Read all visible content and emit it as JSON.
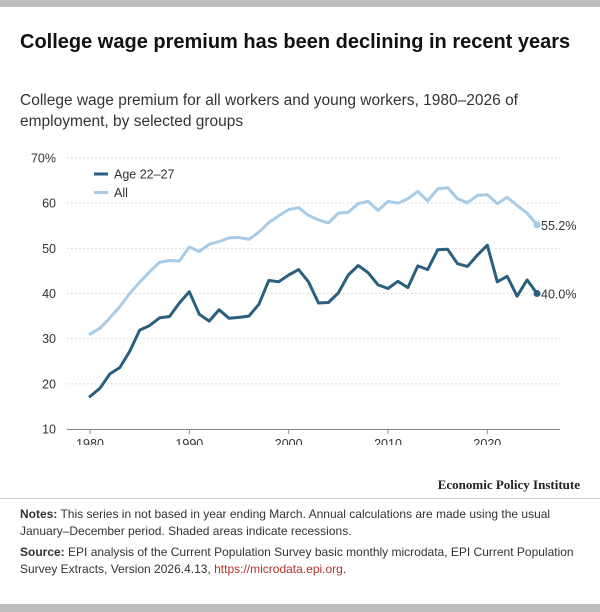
{
  "header": {
    "title": "College wage premium has been declining in recent years",
    "subtitle": "College wage premium for all workers and young workers, 1980–2026 of employment, by selected groups"
  },
  "footer": {
    "brand": "Economic Policy Institute",
    "notes_label": "Notes:",
    "notes_text": " This series in not based in year ending March. Annual calculations are made using the usual January–December period. Shaded areas indicate recessions.",
    "source_label": "Source:",
    "source_text": " EPI analysis of the Current Population Survey basic monthly microdata, EPI Current Population Survey Extracts, Version 2026.4.13, ",
    "source_link": "https://microdata.epi.org",
    "source_end": "."
  },
  "colors": {
    "young": "#2b5f80",
    "all": "#a8cbe8",
    "grid": "#d3d3d3",
    "text": "#333333"
  },
  "chart_data": {
    "type": "line",
    "title": "",
    "xlabel": "",
    "ylabel": "",
    "xlim": [
      1980,
      2025
    ],
    "ylim": [
      10,
      70
    ],
    "x_ticks": [
      1980,
      1990,
      2000,
      2010,
      2020
    ],
    "y_ticks": [
      10,
      20,
      30,
      40,
      50,
      60,
      70
    ],
    "y_tick_labels": [
      "10",
      "20",
      "30",
      "40",
      "50",
      "60",
      "70%"
    ],
    "grid": true,
    "legend": "top-left",
    "x": [
      1980,
      1981,
      1982,
      1983,
      1984,
      1985,
      1986,
      1987,
      1988,
      1989,
      1990,
      1991,
      1992,
      1993,
      1994,
      1995,
      1996,
      1997,
      1998,
      1999,
      2000,
      2001,
      2002,
      2003,
      2004,
      2005,
      2006,
      2007,
      2008,
      2009,
      2010,
      2011,
      2012,
      2013,
      2014,
      2015,
      2016,
      2017,
      2018,
      2019,
      2020,
      2021,
      2022,
      2023,
      2024,
      2025
    ],
    "series": [
      {
        "name": "Age 22–27",
        "values": [
          17.2,
          19.0,
          22.2,
          23.6,
          27.2,
          31.9,
          32.9,
          34.6,
          34.9,
          37.9,
          40.4,
          35.4,
          33.9,
          36.4,
          34.5,
          34.7,
          35.0,
          37.6,
          42.9,
          42.6,
          44.1,
          45.3,
          42.6,
          37.9,
          38.0,
          40.1,
          44.1,
          46.2,
          44.6,
          41.9,
          41.1,
          42.7,
          41.3,
          46.1,
          45.3,
          49.7,
          49.8,
          46.6,
          46.0,
          48.5,
          50.7,
          42.6,
          43.8,
          39.4,
          43.0,
          40.0
        ],
        "end_label": "40.0%"
      },
      {
        "name": "All",
        "values": [
          31.0,
          32.3,
          34.6,
          37.1,
          40.0,
          42.5,
          44.8,
          46.9,
          47.3,
          47.2,
          50.3,
          49.3,
          50.9,
          51.5,
          52.3,
          52.4,
          52.0,
          53.6,
          55.7,
          57.2,
          58.6,
          59.0,
          57.3,
          56.3,
          55.6,
          57.8,
          58.0,
          59.9,
          60.4,
          58.4,
          60.4,
          60.0,
          61.0,
          62.6,
          60.5,
          63.2,
          63.4,
          61.0,
          60.1,
          61.7,
          61.9,
          59.9,
          61.3,
          59.5,
          57.8,
          55.2
        ],
        "end_label": "55.2%"
      }
    ]
  }
}
